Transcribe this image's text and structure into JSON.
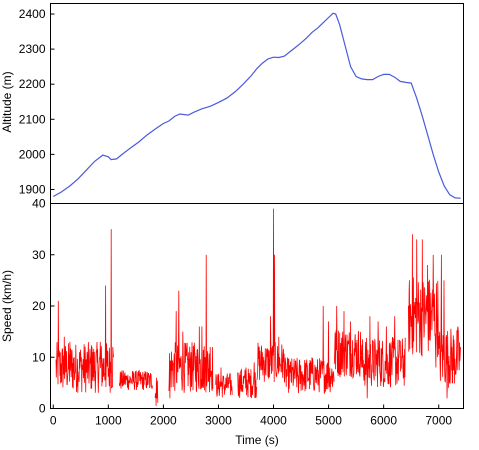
{
  "chart_data": [
    {
      "type": "line",
      "ylabel": "Altitude (m)",
      "ylim": [
        1860,
        2430
      ],
      "xlim": [
        -50,
        7450
      ],
      "yticks": [
        1900,
        2000,
        2100,
        2200,
        2300,
        2400
      ],
      "grid": false,
      "series": [
        {
          "color": "#4a5bdc",
          "x": [
            0,
            150,
            300,
            450,
            600,
            750,
            900,
            1000,
            1050,
            1150,
            1250,
            1400,
            1550,
            1700,
            1850,
            2000,
            2100,
            2200,
            2300,
            2450,
            2550,
            2700,
            2850,
            3000,
            3150,
            3300,
            3450,
            3600,
            3700,
            3800,
            3900,
            4000,
            4100,
            4200,
            4300,
            4400,
            4500,
            4600,
            4700,
            4800,
            4900,
            5000,
            5080,
            5130,
            5200,
            5300,
            5400,
            5500,
            5600,
            5700,
            5800,
            5900,
            6000,
            6100,
            6200,
            6300,
            6400,
            6500,
            6600,
            6700,
            6800,
            6900,
            7000,
            7100,
            7200,
            7300,
            7400
          ],
          "values": [
            1880,
            1893,
            1910,
            1930,
            1955,
            1980,
            1998,
            1993,
            1985,
            1987,
            2000,
            2018,
            2035,
            2055,
            2072,
            2088,
            2095,
            2108,
            2115,
            2112,
            2120,
            2130,
            2137,
            2148,
            2160,
            2178,
            2200,
            2225,
            2245,
            2260,
            2272,
            2277,
            2276,
            2280,
            2293,
            2305,
            2318,
            2332,
            2348,
            2360,
            2375,
            2390,
            2402,
            2400,
            2370,
            2310,
            2250,
            2222,
            2215,
            2213,
            2213,
            2222,
            2228,
            2228,
            2220,
            2208,
            2205,
            2203,
            2160,
            2110,
            2055,
            2000,
            1950,
            1910,
            1885,
            1876,
            1875
          ]
        }
      ]
    },
    {
      "type": "line",
      "xlabel": "Time (s)",
      "ylabel": "Speed (km/h)",
      "xlim": [
        -50,
        7450
      ],
      "ylim": [
        0,
        40
      ],
      "xticks": [
        0,
        1000,
        2000,
        3000,
        4000,
        5000,
        6000,
        7000
      ],
      "yticks": [
        0,
        10,
        20,
        30,
        40
      ],
      "grid": false,
      "series": [
        {
          "color": "#ff0000",
          "segments": [
            {
              "range": [
                50,
                1100
              ],
              "base": 8,
              "amp": 5,
              "spikes": [
                [
                  90,
                  21
                ],
                [
                  200,
                  14
                ],
                [
                  300,
                  13
                ],
                [
                  500,
                  10
                ],
                [
                  700,
                  12
                ],
                [
                  850,
                  13
                ],
                [
                  950,
                  24
                ],
                [
                  1050,
                  35
                ],
                [
                  1080,
                  12
                ]
              ]
            },
            {
              "range": [
                1200,
                1800
              ],
              "base": 5.5,
              "amp": 2,
              "spikes": [
                [
                  1300,
                  7
                ],
                [
                  1500,
                  6
                ],
                [
                  1750,
                  4
                ]
              ]
            },
            {
              "range": [
                1850,
                1900
              ],
              "base": 3,
              "amp": 3,
              "spikes": [
                [
                  1870,
                  6
                ]
              ]
            },
            {
              "range": [
                2100,
                2900
              ],
              "base": 8,
              "amp": 5,
              "spikes": [
                [
                  2120,
                  2
                ],
                [
                  2230,
                  19
                ],
                [
                  2280,
                  23
                ],
                [
                  2350,
                  15
                ],
                [
                  2500,
                  11
                ],
                [
                  2650,
                  16
                ],
                [
                  2700,
                  16
                ],
                [
                  2780,
                  30
                ],
                [
                  2850,
                  12
                ]
              ]
            },
            {
              "range": [
                2950,
                3250
              ],
              "base": 4.5,
              "amp": 2.5,
              "spikes": [
                [
                  3050,
                  8
                ],
                [
                  3200,
                  5
                ]
              ]
            },
            {
              "range": [
                3350,
                3700
              ],
              "base": 5,
              "amp": 3,
              "spikes": [
                [
                  3500,
                  8
                ],
                [
                  3650,
                  9
                ]
              ]
            },
            {
              "range": [
                3700,
                4200
              ],
              "base": 9,
              "amp": 4,
              "spikes": [
                [
                  3800,
                  11
                ],
                [
                  3950,
                  18
                ],
                [
                  4000,
                  39
                ],
                [
                  4020,
                  30
                ],
                [
                  4100,
                  14
                ]
              ]
            },
            {
              "range": [
                4200,
                5100
              ],
              "base": 6.5,
              "amp": 3.5,
              "spikes": [
                [
                  4300,
                  7
                ],
                [
                  4450,
                  3
                ],
                [
                  4700,
                  10
                ],
                [
                  4900,
                  20
                ],
                [
                  5000,
                  17
                ]
              ]
            },
            {
              "range": [
                5100,
                5600
              ],
              "base": 11,
              "amp": 5,
              "spikes": [
                [
                  5150,
                  20
                ],
                [
                  5280,
                  19
                ],
                [
                  5400,
                  17
                ],
                [
                  5550,
                  7
                ]
              ]
            },
            {
              "range": [
                5600,
                6400
              ],
              "base": 9,
              "amp": 5,
              "spikes": [
                [
                  5700,
                  2
                ],
                [
                  5750,
                  18
                ],
                [
                  5900,
                  17
                ],
                [
                  6050,
                  16
                ],
                [
                  6200,
                  18
                ],
                [
                  6300,
                  13
                ]
              ]
            },
            {
              "range": [
                6450,
                7000
              ],
              "base": 18,
              "amp": 8,
              "spikes": [
                [
                  6520,
                  34
                ],
                [
                  6600,
                  33
                ],
                [
                  6700,
                  33
                ],
                [
                  6800,
                  28
                ],
                [
                  6900,
                  30
                ],
                [
                  6950,
                  8
                ]
              ]
            },
            {
              "range": [
                7000,
                7400
              ],
              "base": 10,
              "amp": 6,
              "spikes": [
                [
                  7050,
                  30
                ],
                [
                  7100,
                  25
                ],
                [
                  7150,
                  2
                ],
                [
                  7250,
                  5
                ],
                [
                  7350,
                  16
                ],
                [
                  7400,
                  12
                ]
              ]
            }
          ]
        }
      ]
    }
  ]
}
